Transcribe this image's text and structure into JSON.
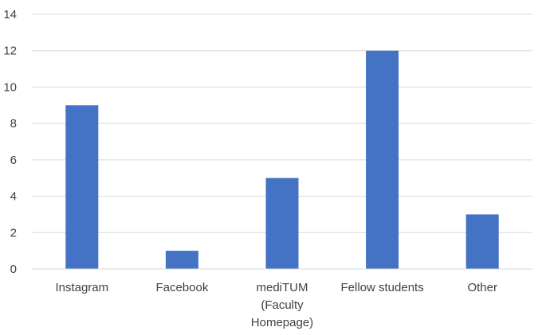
{
  "chart_data": {
    "type": "bar",
    "categories": [
      [
        "Instagram"
      ],
      [
        "Facebook"
      ],
      [
        "mediTUM",
        "(Faculty",
        "Homepage)"
      ],
      [
        "Fellow students"
      ],
      [
        "Other"
      ]
    ],
    "values": [
      9,
      1,
      5,
      12,
      3
    ],
    "ylim": [
      0,
      14
    ],
    "yticks": [
      0,
      2,
      4,
      6,
      8,
      10,
      12,
      14
    ],
    "grid": true,
    "legend": "none",
    "title": "",
    "xlabel": "",
    "ylabel": "",
    "colors": {
      "bar": "#4472C4",
      "grid": "#D9D9D9",
      "text": "#404040"
    }
  }
}
